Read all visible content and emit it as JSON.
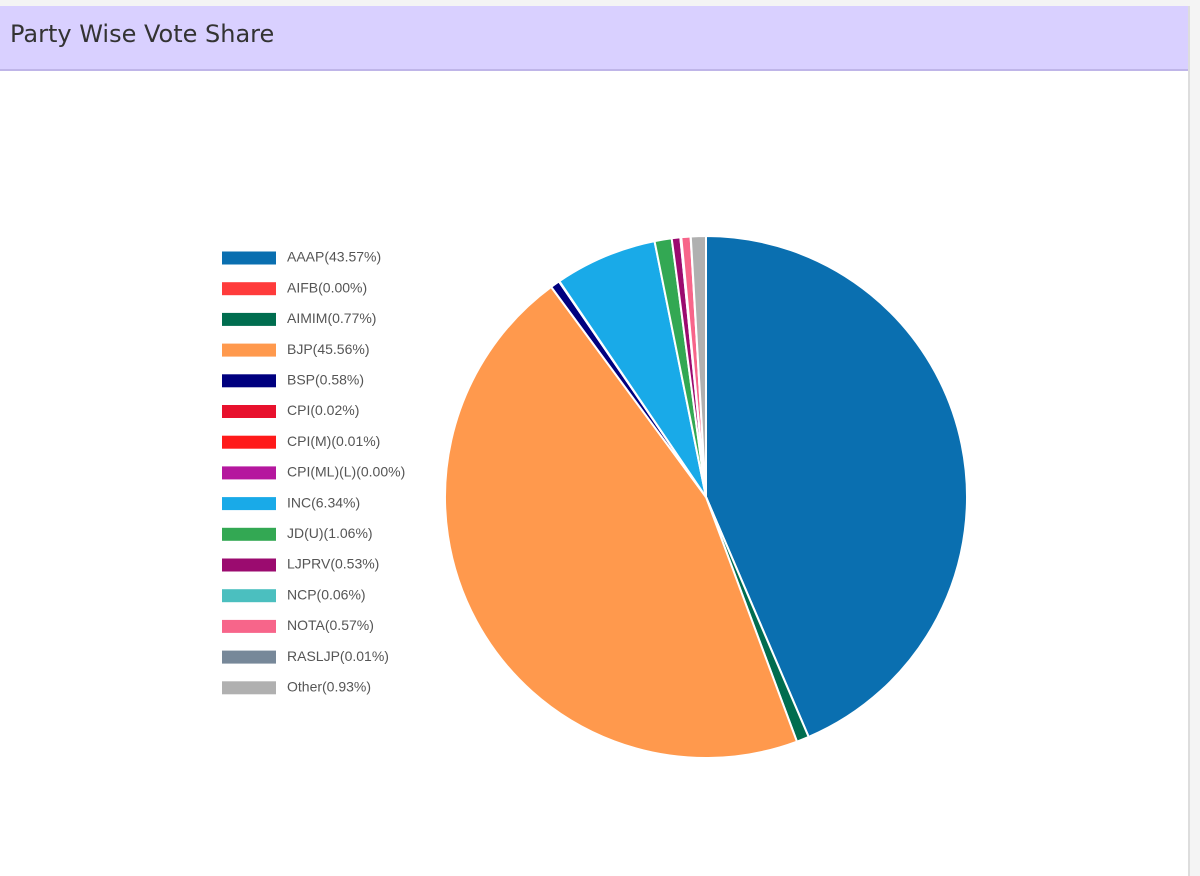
{
  "chart_data": {
    "type": "pie",
    "title": "Party Wise Vote Share",
    "categories": [
      "AAAP(43.57%)",
      "AIFB(0.00%)",
      "AIMIM(0.77%)",
      "BJP(45.56%)",
      "BSP(0.58%)",
      "CPI(0.02%)",
      "CPI(M)(0.01%)",
      "CPI(ML)(L)(0.00%)",
      "INC(6.34%)",
      "JD(U)(1.06%)",
      "LJPRV(0.53%)",
      "NCP(0.06%)",
      "NOTA(0.57%)",
      "RASLJP(0.01%)",
      "Other(0.93%)"
    ],
    "values": [
      43.57,
      0.0,
      0.77,
      45.56,
      0.58,
      0.02,
      0.01,
      0.0,
      6.34,
      1.06,
      0.53,
      0.06,
      0.57,
      0.01,
      0.93
    ],
    "colors": [
      "#0a6fb0",
      "#ff3b3b",
      "#006d4f",
      "#ff994d",
      "#00007f",
      "#e8112d",
      "#ff1a1a",
      "#b5179e",
      "#19aae8",
      "#33a853",
      "#9b0b6f",
      "#4bbfbf",
      "#f7658a",
      "#778899",
      "#b0b0b0"
    ],
    "legend": "left"
  }
}
